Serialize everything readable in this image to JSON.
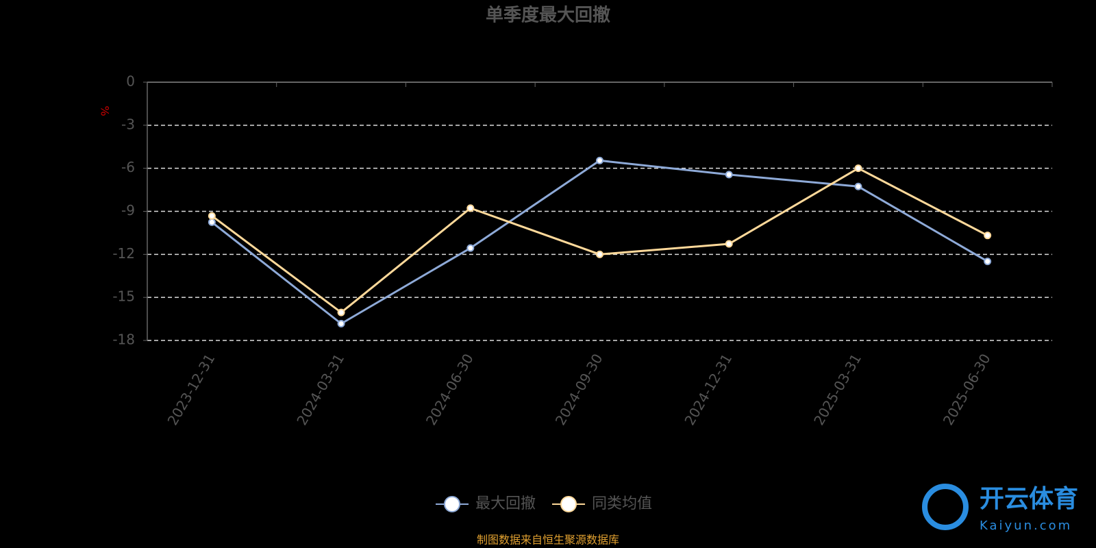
{
  "chart_data": {
    "type": "line",
    "title": "单季度最大回撤",
    "y_label": "%",
    "categories": [
      "2023-12-31",
      "2024-03-31",
      "2024-06-30",
      "2024-09-30",
      "2024-12-31",
      "2025-03-31",
      "2025-06-30"
    ],
    "series": [
      {
        "name": "最大回撤",
        "color": "#8eaad8",
        "values": [
          -9.76,
          -16.83,
          -11.56,
          -5.46,
          -6.44,
          -7.27,
          -12.49
        ]
      },
      {
        "name": "同类均值",
        "color": "#ffd99a",
        "values": [
          -9.32,
          -16.05,
          -8.78,
          -12.0,
          -11.27,
          -6.0,
          -10.68
        ]
      }
    ],
    "ylim": [
      -18,
      0
    ],
    "yticks": [
      0,
      -3,
      -6,
      -9,
      -12,
      -15,
      -18
    ],
    "grid": true,
    "legend": "bottom",
    "source": "制图数据来自恒生聚源数据库",
    "watermark": {
      "brand": "开云体育",
      "site": "Kaiyun.com"
    }
  }
}
